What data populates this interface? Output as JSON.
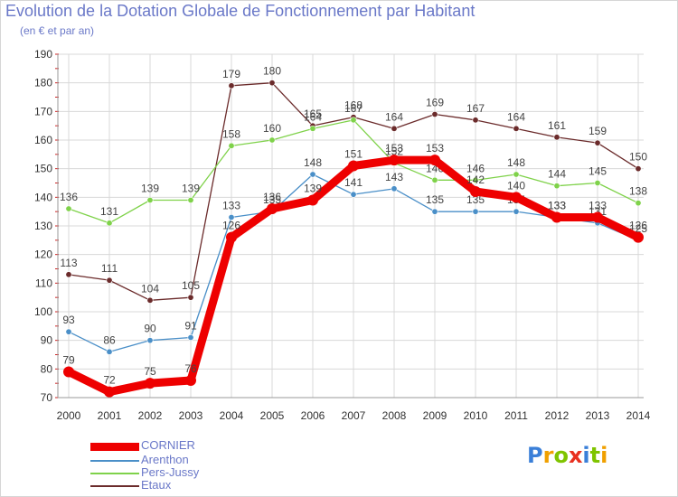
{
  "chart_data": {
    "type": "line",
    "title": "Evolution de la Dotation Globale de Fonctionnement par Habitant",
    "subtitle": "(en € et par an)",
    "xlabel": "",
    "ylabel": "",
    "ylim": [
      70,
      190
    ],
    "yticks": [
      70,
      80,
      90,
      100,
      110,
      120,
      130,
      140,
      150,
      160,
      170,
      180,
      190
    ],
    "categories": [
      "2000",
      "2001",
      "2002",
      "2003",
      "2004",
      "2005",
      "2006",
      "2007",
      "2008",
      "2009",
      "2010",
      "2011",
      "2012",
      "2013",
      "2014"
    ],
    "grid": true,
    "legend_position": "bottom-left",
    "series": [
      {
        "name": "Etaux",
        "color": "#6b2b2b",
        "values": [
          113,
          111,
          104,
          105,
          179,
          180,
          165,
          168,
          164,
          169,
          167,
          164,
          161,
          159,
          150
        ]
      },
      {
        "name": "Pers-Jussy",
        "color": "#7fd24a",
        "values": [
          136,
          131,
          139,
          139,
          158,
          160,
          164,
          167,
          152,
          146,
          146,
          148,
          144,
          145,
          138
        ]
      },
      {
        "name": "Arenthon",
        "color": "#4a8fc8",
        "values": [
          93,
          86,
          90,
          91,
          133,
          135,
          148,
          141,
          143,
          135,
          135,
          135,
          133,
          131,
          125
        ]
      },
      {
        "name": "CORNIER",
        "color": "#ee0000",
        "values": [
          79,
          72,
          75,
          76,
          126,
          136,
          139,
          151,
          153,
          153,
          142,
          140,
          133,
          133,
          126
        ]
      }
    ],
    "legend": [
      {
        "name": "CORNIER",
        "color": "#ee0000",
        "text_color": "#6a78c8",
        "thickness": 9
      },
      {
        "name": "Arenthon",
        "color": "#4a8fc8",
        "text_color": "#6a78c8",
        "thickness": 2
      },
      {
        "name": "Pers-Jussy",
        "color": "#7fd24a",
        "text_color": "#6a78c8",
        "thickness": 2
      },
      {
        "name": "Etaux",
        "color": "#6b2b2b",
        "text_color": "#6a78c8",
        "thickness": 2
      }
    ]
  },
  "logo": {
    "letters": [
      "P",
      "r",
      "o",
      "x",
      "i",
      "t",
      "i"
    ],
    "colors": [
      "#3a7fd8",
      "#f0a000",
      "#7fc400",
      "#e83020",
      "#3a7fd8",
      "#7fc400",
      "#f0a000"
    ]
  }
}
